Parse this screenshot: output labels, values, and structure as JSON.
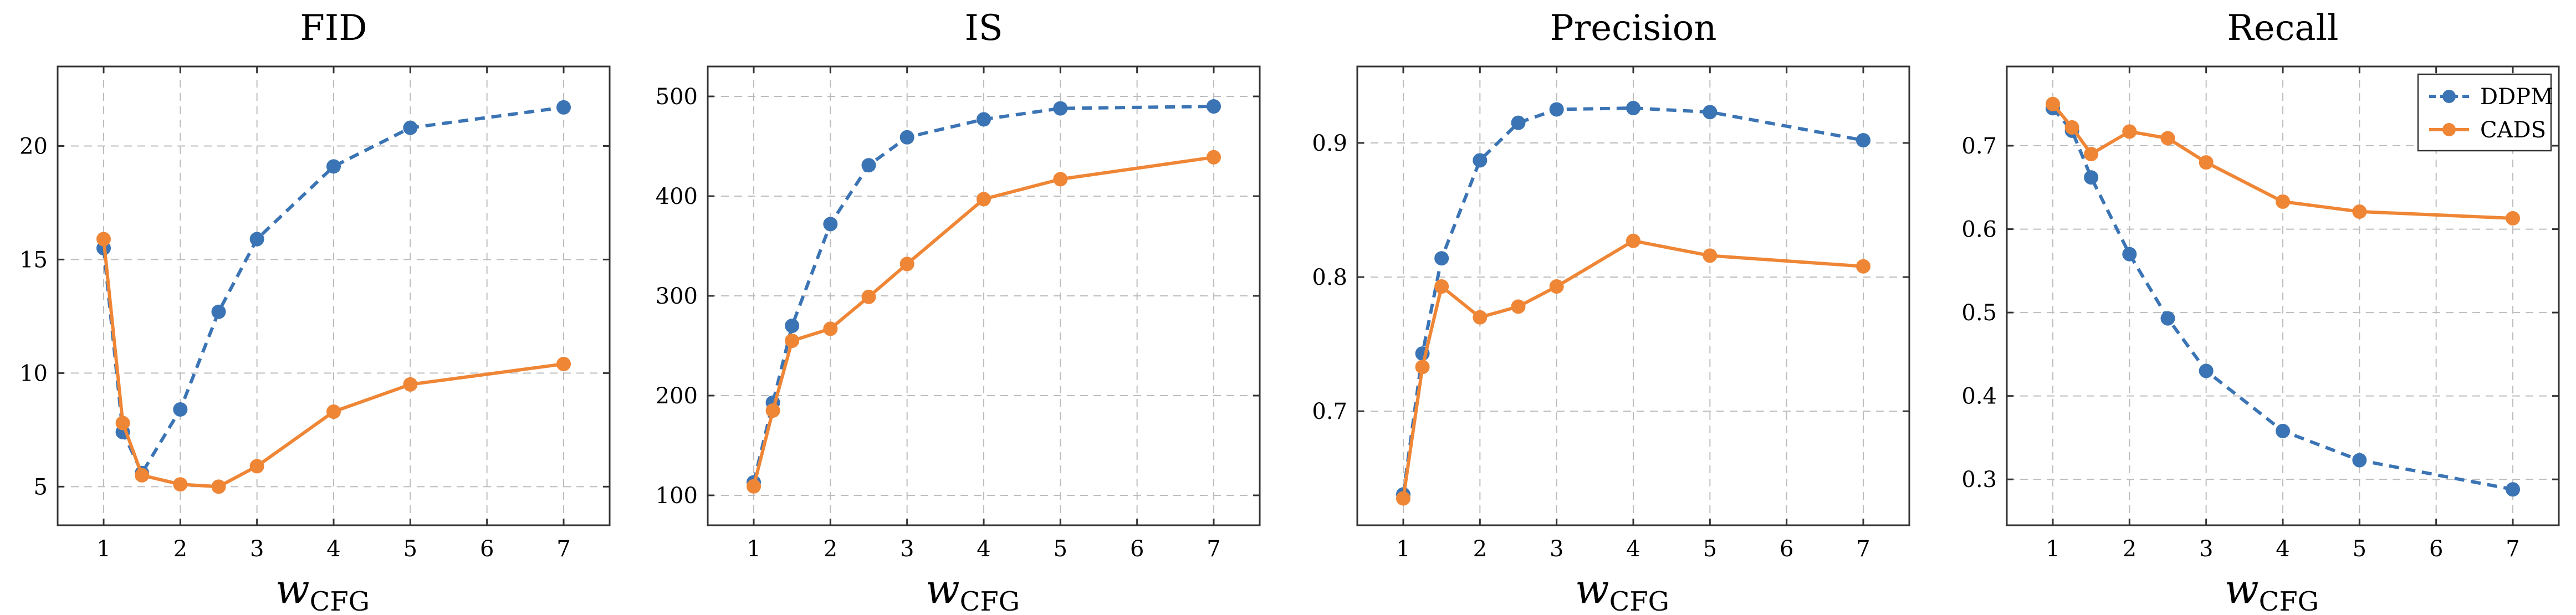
{
  "chart_data": [
    {
      "type": "line",
      "title": "FID",
      "xlabel": "w",
      "xlabel_sub": "CFG",
      "ylabel": "",
      "xlim": [
        0.4,
        7.6
      ],
      "ylim": [
        3.3,
        23.5
      ],
      "xticks": [
        1,
        2,
        3,
        4,
        5,
        6,
        7
      ],
      "yticks": [
        5,
        10,
        15,
        20
      ],
      "series": [
        {
          "name": "DDPM",
          "style": "dashed",
          "x": [
            1,
            1.25,
            1.5,
            2,
            2.5,
            3,
            4,
            5,
            7
          ],
          "y": [
            15.5,
            7.4,
            5.6,
            8.4,
            12.7,
            15.9,
            19.1,
            20.8,
            21.7
          ]
        },
        {
          "name": "CADS",
          "style": "solid",
          "x": [
            1,
            1.25,
            1.5,
            2,
            2.5,
            3,
            4,
            5,
            7
          ],
          "y": [
            15.9,
            7.8,
            5.5,
            5.1,
            5.0,
            5.9,
            8.3,
            9.5,
            10.4
          ]
        }
      ]
    },
    {
      "type": "line",
      "title": "IS",
      "xlabel": "w",
      "xlabel_sub": "CFG",
      "ylabel": "",
      "xlim": [
        0.4,
        7.6
      ],
      "ylim": [
        70,
        530
      ],
      "xticks": [
        1,
        2,
        3,
        4,
        5,
        6,
        7
      ],
      "yticks": [
        100,
        200,
        300,
        400,
        500
      ],
      "series": [
        {
          "name": "DDPM",
          "style": "dashed",
          "x": [
            1,
            1.25,
            1.5,
            2,
            2.5,
            3,
            4,
            5,
            7
          ],
          "y": [
            113,
            193,
            270,
            372,
            431,
            459,
            477,
            488,
            490
          ]
        },
        {
          "name": "CADS",
          "style": "solid",
          "x": [
            1,
            1.25,
            1.5,
            2,
            2.5,
            3,
            4,
            5,
            7
          ],
          "y": [
            109,
            185,
            255,
            267,
            299,
            332,
            397,
            417,
            439
          ]
        }
      ]
    },
    {
      "type": "line",
      "title": "Precision",
      "xlabel": "w",
      "xlabel_sub": "CFG",
      "ylabel": "",
      "xlim": [
        0.4,
        7.6
      ],
      "ylim": [
        0.615,
        0.957
      ],
      "xticks": [
        1,
        2,
        3,
        4,
        5,
        6,
        7
      ],
      "yticks": [
        0.7,
        0.8,
        0.9
      ],
      "series": [
        {
          "name": "DDPM",
          "style": "dashed",
          "x": [
            1,
            1.25,
            1.5,
            2,
            2.5,
            3,
            4,
            5,
            7
          ],
          "y": [
            0.638,
            0.743,
            0.814,
            0.887,
            0.915,
            0.925,
            0.926,
            0.923,
            0.902
          ]
        },
        {
          "name": "CADS",
          "style": "solid",
          "x": [
            1,
            1.25,
            1.5,
            2,
            2.5,
            3,
            4,
            5,
            7
          ],
          "y": [
            0.635,
            0.733,
            0.793,
            0.77,
            0.778,
            0.793,
            0.827,
            0.816,
            0.808
          ]
        }
      ]
    },
    {
      "type": "line",
      "title": "Recall",
      "xlabel": "w",
      "xlabel_sub": "CFG",
      "ylabel": "",
      "xlim": [
        0.4,
        7.6
      ],
      "ylim": [
        0.245,
        0.795
      ],
      "xticks": [
        1,
        2,
        3,
        4,
        5,
        6,
        7
      ],
      "yticks": [
        0.3,
        0.4,
        0.5,
        0.6,
        0.7
      ],
      "legend": "top-right",
      "series": [
        {
          "name": "DDPM",
          "style": "dashed",
          "x": [
            1,
            1.25,
            1.5,
            2,
            2.5,
            3,
            4,
            5,
            7
          ],
          "y": [
            0.745,
            0.718,
            0.662,
            0.57,
            0.493,
            0.43,
            0.358,
            0.323,
            0.288
          ]
        },
        {
          "name": "CADS",
          "style": "solid",
          "x": [
            1,
            1.25,
            1.5,
            2,
            2.5,
            3,
            4,
            5,
            7
          ],
          "y": [
            0.75,
            0.722,
            0.69,
            0.717,
            0.709,
            0.68,
            0.633,
            0.621,
            0.613
          ]
        }
      ]
    }
  ],
  "colors": {
    "DDPM": "#3b74b4",
    "CADS": "#ef8636"
  }
}
